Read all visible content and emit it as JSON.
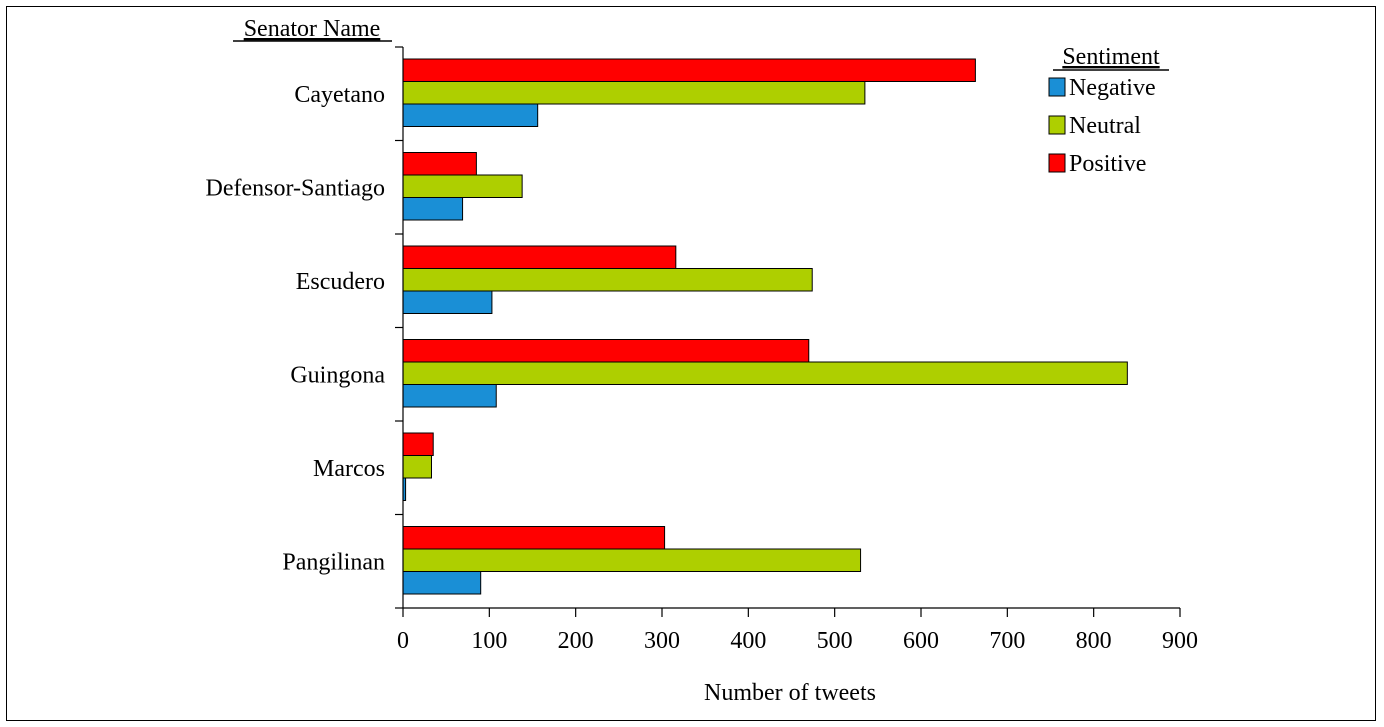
{
  "chart_data": {
    "type": "bar",
    "orientation": "horizontal",
    "ylabel": "Senator Name",
    "xlabel": "Number of tweets",
    "categories": [
      "Cayetano",
      "Defensor-Santiago",
      "Escudero",
      "Guingona",
      "Marcos",
      "Pangilinan"
    ],
    "series": [
      {
        "name": "Negative",
        "color": "#1a8fd6",
        "values": [
          156,
          69,
          103,
          108,
          3,
          90
        ]
      },
      {
        "name": "Neutral",
        "color": "#aecf00",
        "values": [
          535,
          138,
          474,
          839,
          33,
          530
        ]
      },
      {
        "name": "Positive",
        "color": "#ff0000",
        "values": [
          663,
          85,
          316,
          470,
          35,
          303
        ]
      }
    ],
    "xlim": [
      0,
      900
    ],
    "xticks": [
      0,
      100,
      200,
      300,
      400,
      500,
      600,
      700,
      800,
      900
    ],
    "legend": {
      "title": "Sentiment",
      "position": "top-right"
    },
    "grid": false
  }
}
